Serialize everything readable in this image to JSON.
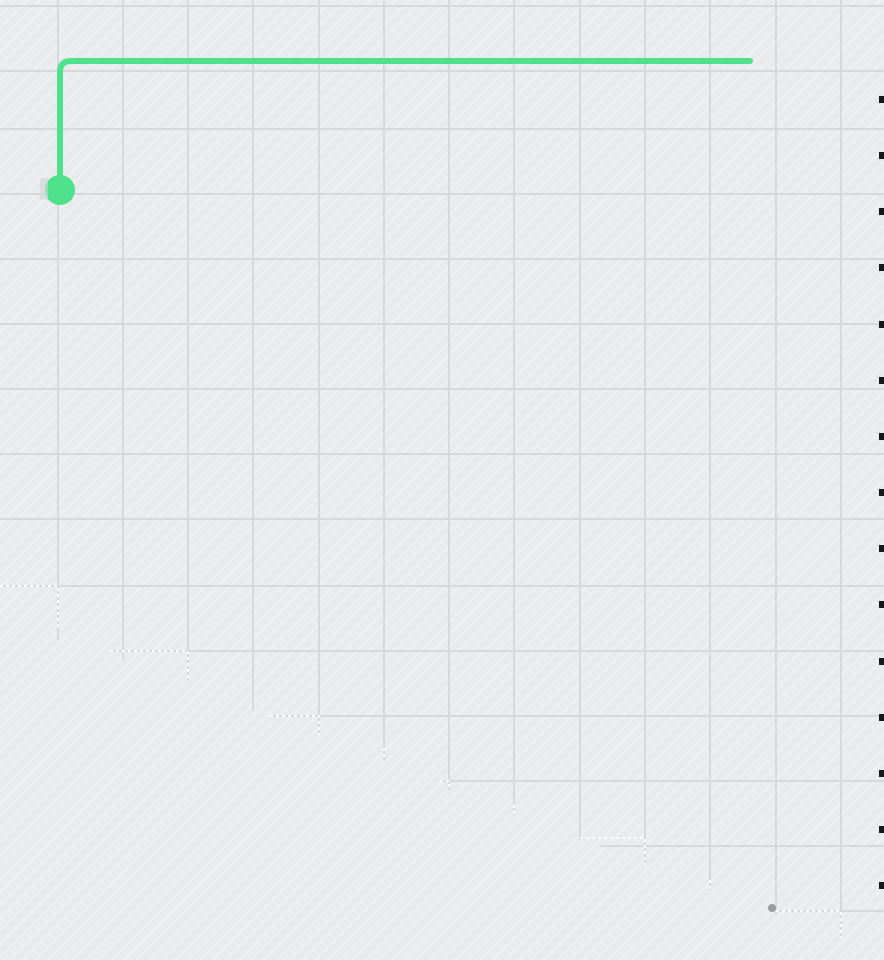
{
  "colors": {
    "background": "#e8eaec",
    "grid": "#d6d9dc",
    "accent_line": "#4ee08a",
    "end_dot": "#9a9ca0",
    "edge_ticks": "#16181a"
  },
  "icons": {
    "start_marker": "green-dot-icon",
    "end_marker": "gray-dot-icon"
  }
}
